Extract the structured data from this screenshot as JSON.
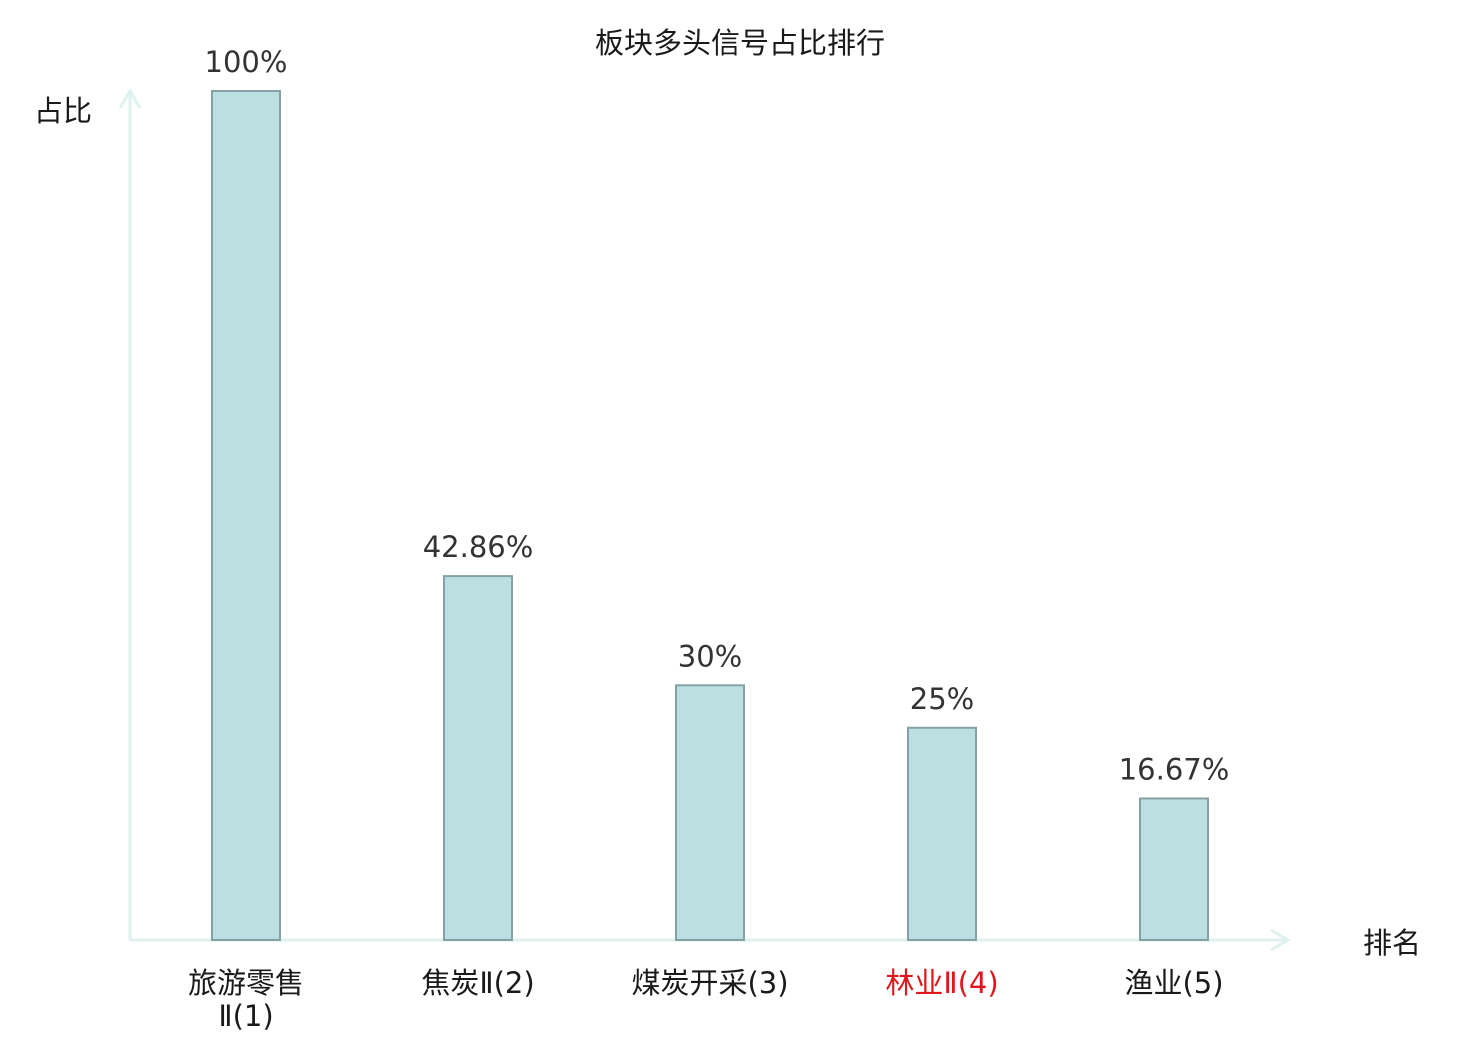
{
  "chart_data": {
    "type": "bar",
    "title": "板块多头信号占比排行",
    "ylabel": "占比",
    "xlabel": "排名",
    "categories": [
      [
        "旅游零售",
        "Ⅱ(1)"
      ],
      [
        "焦炭Ⅱ(2)"
      ],
      [
        "煤炭开采(3)"
      ],
      [
        "林业Ⅱ(4)"
      ],
      [
        "渔业(5)"
      ]
    ],
    "values": [
      100,
      42.86,
      30,
      25,
      16.67
    ],
    "value_labels": [
      "100%",
      "42.86%",
      "30%",
      "25%",
      "16.67%"
    ],
    "ylim": [
      0,
      100
    ],
    "grid": false,
    "legend": "none",
    "highlight_index": 3
  },
  "colors": {
    "bar_fill": "#bce0e2",
    "bar_stroke": "#84a1a3",
    "axis": "#dff2ef",
    "text": "#1a1a1a",
    "value_label": "#333333",
    "highlight_text": "#e0161d"
  }
}
